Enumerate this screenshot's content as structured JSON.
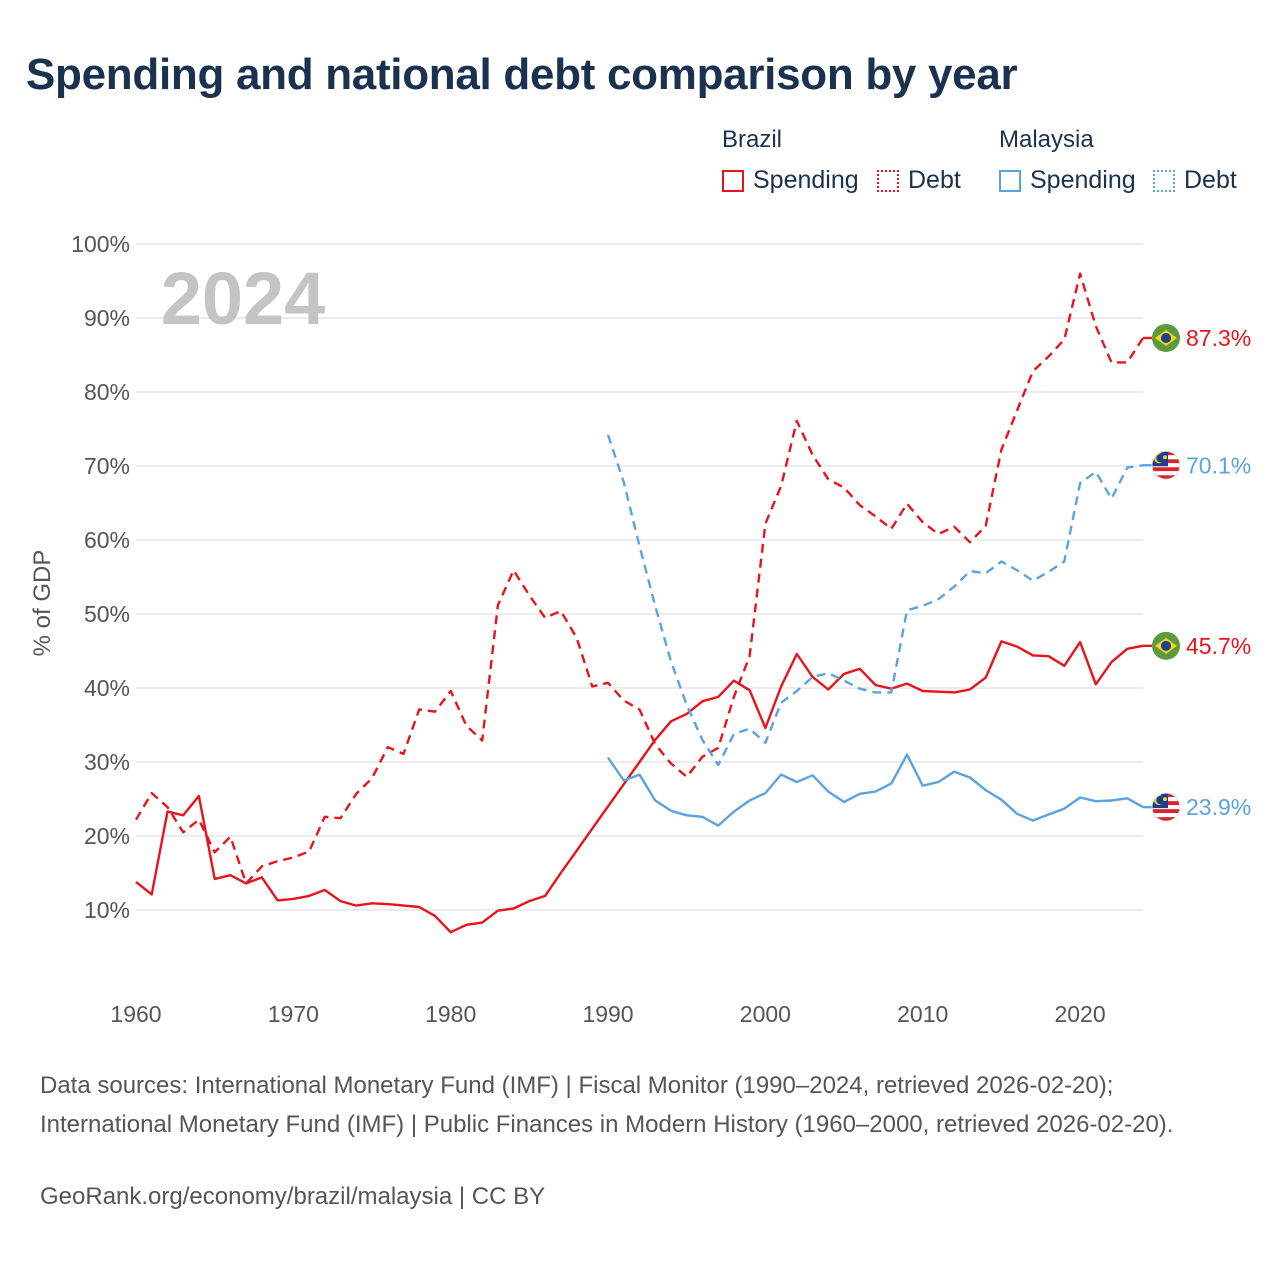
{
  "title": "Spending and national debt comparison by year",
  "legend": {
    "groups": [
      {
        "name": "Brazil",
        "color": "#e8141b",
        "items": [
          {
            "label": "Spending",
            "style": "solid"
          },
          {
            "label": "Debt",
            "style": "dotted"
          }
        ]
      },
      {
        "name": "Malaysia",
        "color": "#5ba3e0",
        "items": [
          {
            "label": "Spending",
            "style": "solid"
          },
          {
            "label": "Debt",
            "style": "dotted"
          }
        ]
      }
    ]
  },
  "year_label": "2024",
  "sources": "Data sources: International Monetary Fund (IMF) | Fiscal Monitor (1990–2024, retrieved 2026-02-20); International Monetary Fund (IMF) | Public Finances in Modern History (1960–2000, retrieved 2026-02-20).",
  "credit": "GeoRank.org/economy/brazil/malaysia | CC BY",
  "chart_data": {
    "type": "line",
    "title": "Spending and national debt comparison by year",
    "xlabel": "",
    "ylabel": "% of GDP",
    "xlim": [
      1960,
      2024
    ],
    "ylim": [
      0,
      100
    ],
    "x_ticks": [
      1960,
      1970,
      1980,
      1990,
      2000,
      2010,
      2020
    ],
    "y_ticks": [
      10,
      20,
      30,
      40,
      50,
      60,
      70,
      80,
      90,
      100
    ],
    "y_tick_labels": [
      "10%",
      "20%",
      "30%",
      "40%",
      "50%",
      "60%",
      "70%",
      "80%",
      "90%",
      "100%"
    ],
    "grid": true,
    "series": [
      {
        "name": "Brazil Spending",
        "country": "Brazil",
        "color": "#e8141b",
        "dash": "solid",
        "end_label": "45.7%",
        "points": [
          [
            1960,
            13.8
          ],
          [
            1961,
            12.1
          ],
          [
            1962,
            23.3
          ],
          [
            1963,
            22.8
          ],
          [
            1964,
            25.4
          ],
          [
            1965,
            14.2
          ],
          [
            1966,
            14.7
          ],
          [
            1967,
            13.6
          ],
          [
            1968,
            14.4
          ],
          [
            1969,
            11.3
          ],
          [
            1970,
            11.5
          ],
          [
            1971,
            11.9
          ],
          [
            1972,
            12.7
          ],
          [
            1973,
            11.2
          ],
          [
            1974,
            10.6
          ],
          [
            1975,
            10.9
          ],
          [
            1976,
            10.8
          ],
          [
            1977,
            10.6
          ],
          [
            1978,
            10.4
          ],
          [
            1979,
            9.2
          ],
          [
            1980,
            7.0
          ],
          [
            1981,
            8.0
          ],
          [
            1982,
            8.3
          ],
          [
            1983,
            9.9
          ],
          [
            1984,
            10.2
          ],
          [
            1985,
            11.2
          ],
          [
            1986,
            11.9
          ],
          [
            1987,
            15.0
          ],
          [
            1988,
            18.0
          ],
          [
            1989,
            21.0
          ],
          [
            1990,
            24.0
          ],
          [
            1991,
            27.0
          ],
          [
            1992,
            30.0
          ],
          [
            1993,
            33.0
          ],
          [
            1994,
            35.5
          ],
          [
            1995,
            36.5
          ],
          [
            1996,
            38.2
          ],
          [
            1997,
            38.8
          ],
          [
            1998,
            41.0
          ],
          [
            1999,
            39.7
          ],
          [
            2000,
            34.6
          ],
          [
            2001,
            40.2
          ],
          [
            2002,
            44.6
          ],
          [
            2003,
            41.5
          ],
          [
            2004,
            39.8
          ],
          [
            2005,
            41.9
          ],
          [
            2006,
            42.6
          ],
          [
            2007,
            40.4
          ],
          [
            2008,
            39.9
          ],
          [
            2009,
            40.6
          ],
          [
            2010,
            39.6
          ],
          [
            2011,
            39.5
          ],
          [
            2012,
            39.4
          ],
          [
            2013,
            39.8
          ],
          [
            2014,
            41.4
          ],
          [
            2015,
            46.3
          ],
          [
            2016,
            45.6
          ],
          [
            2017,
            44.4
          ],
          [
            2018,
            44.3
          ],
          [
            2019,
            43.0
          ],
          [
            2020,
            46.2
          ],
          [
            2021,
            40.5
          ],
          [
            2022,
            43.5
          ],
          [
            2023,
            45.3
          ],
          [
            2024,
            45.7
          ]
        ]
      },
      {
        "name": "Brazil Debt",
        "country": "Brazil",
        "color": "#e8141b",
        "dash": "dashed",
        "end_label": "87.3%",
        "points": [
          [
            1960,
            22.2
          ],
          [
            1961,
            25.8
          ],
          [
            1962,
            23.9
          ],
          [
            1963,
            20.5
          ],
          [
            1964,
            22.2
          ],
          [
            1965,
            17.8
          ],
          [
            1966,
            19.9
          ],
          [
            1967,
            13.6
          ],
          [
            1968,
            15.9
          ],
          [
            1969,
            16.6
          ],
          [
            1970,
            17.1
          ],
          [
            1971,
            17.9
          ],
          [
            1972,
            22.6
          ],
          [
            1973,
            22.4
          ],
          [
            1974,
            25.7
          ],
          [
            1975,
            27.8
          ],
          [
            1976,
            32.0
          ],
          [
            1977,
            31.1
          ],
          [
            1978,
            37.1
          ],
          [
            1979,
            36.8
          ],
          [
            1980,
            39.6
          ],
          [
            1981,
            34.9
          ],
          [
            1982,
            32.9
          ],
          [
            1983,
            51.2
          ],
          [
            1984,
            55.9
          ],
          [
            1985,
            52.5
          ],
          [
            1986,
            49.5
          ],
          [
            1987,
            50.4
          ],
          [
            1988,
            46.8
          ],
          [
            1989,
            40.2
          ],
          [
            1990,
            40.7
          ],
          [
            1991,
            38.3
          ],
          [
            1992,
            37.1
          ],
          [
            1993,
            32.4
          ],
          [
            1994,
            29.8
          ],
          [
            1995,
            28.0
          ],
          [
            1996,
            30.7
          ],
          [
            1997,
            31.9
          ],
          [
            1998,
            38.8
          ],
          [
            1999,
            44.3
          ],
          [
            2000,
            62.2
          ],
          [
            2001,
            67.3
          ],
          [
            2002,
            76.1
          ],
          [
            2003,
            71.5
          ],
          [
            2004,
            68.2
          ],
          [
            2005,
            67.1
          ],
          [
            2006,
            64.7
          ],
          [
            2007,
            63.2
          ],
          [
            2008,
            61.5
          ],
          [
            2009,
            64.9
          ],
          [
            2010,
            62.4
          ],
          [
            2011,
            60.8
          ],
          [
            2012,
            61.8
          ],
          [
            2013,
            59.7
          ],
          [
            2014,
            61.9
          ],
          [
            2015,
            72.2
          ],
          [
            2016,
            77.5
          ],
          [
            2017,
            82.8
          ],
          [
            2018,
            84.8
          ],
          [
            2019,
            87.1
          ],
          [
            2020,
            96.0
          ],
          [
            2021,
            88.9
          ],
          [
            2022,
            84.0
          ],
          [
            2023,
            84.0
          ],
          [
            2024,
            87.3
          ]
        ]
      },
      {
        "name": "Malaysia Spending",
        "country": "Malaysia",
        "color": "#5ba3e0",
        "dash": "solid",
        "end_label": "23.9%",
        "points": [
          [
            1990,
            30.6
          ],
          [
            1991,
            27.5
          ],
          [
            1992,
            28.3
          ],
          [
            1993,
            24.8
          ],
          [
            1994,
            23.4
          ],
          [
            1995,
            22.8
          ],
          [
            1996,
            22.6
          ],
          [
            1997,
            21.4
          ],
          [
            1998,
            23.3
          ],
          [
            1999,
            24.8
          ],
          [
            2000,
            25.8
          ],
          [
            2001,
            28.3
          ],
          [
            2002,
            27.3
          ],
          [
            2003,
            28.2
          ],
          [
            2004,
            26.0
          ],
          [
            2005,
            24.6
          ],
          [
            2006,
            25.7
          ],
          [
            2007,
            26.0
          ],
          [
            2008,
            27.1
          ],
          [
            2009,
            31.0
          ],
          [
            2010,
            26.8
          ],
          [
            2011,
            27.3
          ],
          [
            2012,
            28.7
          ],
          [
            2013,
            27.9
          ],
          [
            2014,
            26.2
          ],
          [
            2015,
            24.9
          ],
          [
            2016,
            23.0
          ],
          [
            2017,
            22.1
          ],
          [
            2018,
            22.9
          ],
          [
            2019,
            23.7
          ],
          [
            2020,
            25.2
          ],
          [
            2021,
            24.7
          ],
          [
            2022,
            24.8
          ],
          [
            2023,
            25.1
          ],
          [
            2024,
            23.9
          ]
        ]
      },
      {
        "name": "Malaysia Debt",
        "country": "Malaysia",
        "color": "#5ba3e0",
        "dash": "dashed",
        "end_label": "70.1%",
        "points": [
          [
            1990,
            74.2
          ],
          [
            1991,
            67.8
          ],
          [
            1992,
            59.2
          ],
          [
            1993,
            51.1
          ],
          [
            1994,
            43.6
          ],
          [
            1995,
            37.7
          ],
          [
            1996,
            33.0
          ],
          [
            1997,
            29.6
          ],
          [
            1998,
            33.8
          ],
          [
            1999,
            34.5
          ],
          [
            2000,
            32.6
          ],
          [
            2001,
            38.0
          ],
          [
            2002,
            39.6
          ],
          [
            2003,
            41.5
          ],
          [
            2004,
            42.0
          ],
          [
            2005,
            41.0
          ],
          [
            2006,
            39.9
          ],
          [
            2007,
            39.4
          ],
          [
            2008,
            39.4
          ],
          [
            2009,
            50.5
          ],
          [
            2010,
            51.1
          ],
          [
            2011,
            52.0
          ],
          [
            2012,
            53.7
          ],
          [
            2013,
            55.8
          ],
          [
            2014,
            55.5
          ],
          [
            2015,
            57.1
          ],
          [
            2016,
            55.9
          ],
          [
            2017,
            54.5
          ],
          [
            2018,
            55.7
          ],
          [
            2019,
            57.1
          ],
          [
            2020,
            67.7
          ],
          [
            2021,
            69.2
          ],
          [
            2022,
            65.6
          ],
          [
            2023,
            69.8
          ],
          [
            2024,
            70.1
          ]
        ]
      }
    ]
  }
}
